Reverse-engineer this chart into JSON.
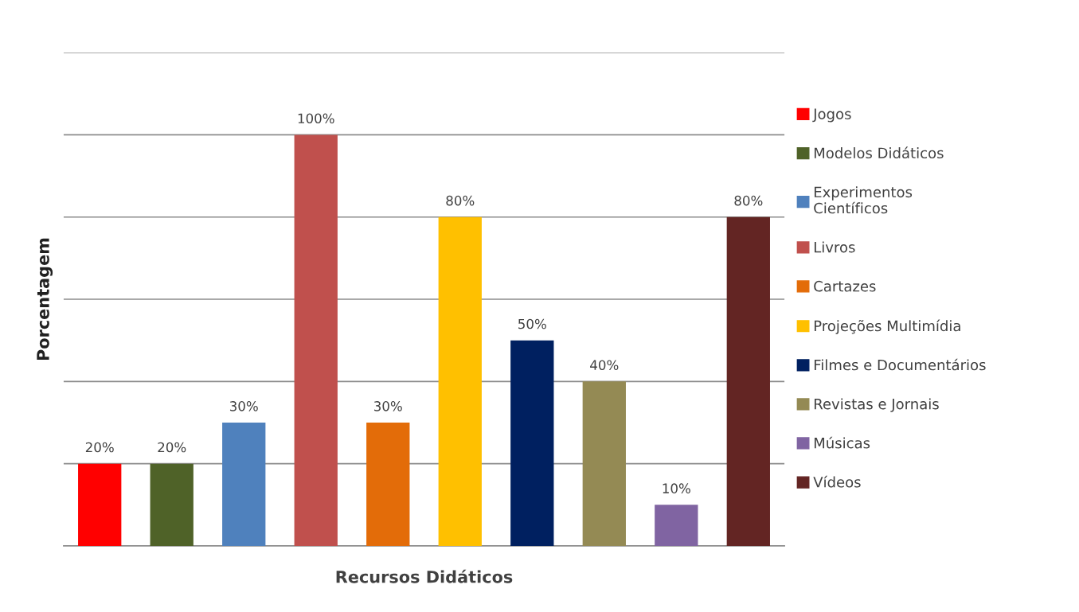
{
  "chart_data": {
    "type": "bar",
    "xlabel": "Recursos Didáticos",
    "ylabel": "Porcentagem",
    "stacked": true,
    "categories": [
      null,
      null,
      null,
      null,
      null,
      null,
      null,
      null,
      null,
      null
    ],
    "series": [
      {
        "name": "Jogos",
        "color": "#ff0000",
        "values": [
          20,
          null,
          null,
          null,
          null,
          null,
          null,
          null,
          null,
          null
        ],
        "value_labels": [
          "20%",
          null,
          null,
          null,
          null,
          null,
          null,
          null,
          null,
          null
        ]
      },
      {
        "name": "Modelos Didáticos",
        "color": "#4f6228",
        "values": [
          null,
          20,
          null,
          null,
          null,
          null,
          null,
          null,
          null,
          null
        ],
        "value_labels": [
          null,
          "20%",
          null,
          null,
          null,
          null,
          null,
          null,
          null,
          null
        ]
      },
      {
        "name": "Experimentos\nCientíficos",
        "color": "#4f81bd",
        "values": [
          null,
          null,
          30,
          null,
          null,
          null,
          null,
          null,
          null,
          null
        ],
        "value_labels": [
          null,
          null,
          "30%",
          null,
          null,
          null,
          null,
          null,
          null,
          null
        ]
      },
      {
        "name": "Livros",
        "color": "#c0504d",
        "values": [
          null,
          null,
          null,
          100,
          null,
          null,
          null,
          null,
          null,
          null
        ],
        "value_labels": [
          null,
          null,
          null,
          "100%",
          null,
          null,
          null,
          null,
          null,
          null
        ]
      },
      {
        "name": "Cartazes",
        "color": "#e36c09",
        "values": [
          null,
          null,
          null,
          null,
          30,
          null,
          null,
          null,
          null,
          null
        ],
        "value_labels": [
          null,
          null,
          null,
          null,
          "30%",
          null,
          null,
          null,
          null,
          null
        ]
      },
      {
        "name": "Projeções Multimídia",
        "color": "#ffc000",
        "values": [
          null,
          null,
          null,
          null,
          null,
          80,
          null,
          null,
          null,
          null
        ],
        "value_labels": [
          null,
          null,
          null,
          null,
          null,
          "80%",
          null,
          null,
          null,
          null
        ]
      },
      {
        "name": "Filmes e Documentários",
        "color": "#002060",
        "values": [
          null,
          null,
          null,
          null,
          null,
          null,
          50,
          null,
          null,
          null
        ],
        "value_labels": [
          null,
          null,
          null,
          null,
          null,
          null,
          "50%",
          null,
          null,
          null
        ]
      },
      {
        "name": "Revistas e Jornais",
        "color": "#948a54",
        "values": [
          null,
          null,
          null,
          null,
          null,
          null,
          null,
          40,
          null,
          null
        ],
        "value_labels": [
          null,
          null,
          null,
          null,
          null,
          null,
          null,
          "40%",
          null,
          null
        ]
      },
      {
        "name": "Músicas",
        "color": "#8064a2",
        "values": [
          null,
          null,
          null,
          null,
          null,
          null,
          null,
          null,
          10,
          null
        ],
        "value_labels": [
          null,
          null,
          null,
          null,
          null,
          null,
          null,
          null,
          "10%",
          null
        ]
      },
      {
        "name": "Vídeos",
        "color": "#632523",
        "values": [
          null,
          null,
          null,
          null,
          null,
          null,
          null,
          null,
          null,
          80
        ],
        "value_labels": [
          null,
          null,
          null,
          null,
          null,
          null,
          null,
          null,
          null,
          "80%"
        ]
      }
    ],
    "ylim": [
      0,
      120
    ],
    "yticks": [
      {
        "value": 0,
        "label": null
      },
      {
        "value": 20,
        "label": null
      },
      {
        "value": 40,
        "label": null
      },
      {
        "value": 60,
        "label": null
      },
      {
        "value": 80,
        "label": null
      },
      {
        "value": 100,
        "label": null
      },
      {
        "value": 120,
        "label": null
      }
    ],
    "grid": "y",
    "legend": "right",
    "tick_labels": false
  }
}
